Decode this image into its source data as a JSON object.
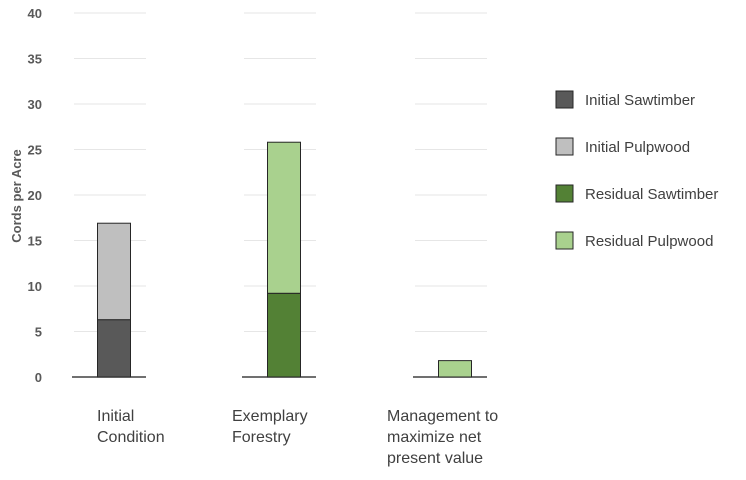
{
  "chart_data": {
    "type": "bar",
    "stacked": true,
    "title": "",
    "xlabel": "",
    "ylabel": "Cords per Acre",
    "ylim": [
      0,
      40
    ],
    "yticks": [
      0,
      5,
      10,
      15,
      20,
      25,
      30,
      35,
      40
    ],
    "grid": false,
    "legend_position": "right",
    "categories": [
      [
        "Initial",
        "Condition"
      ],
      [
        "Exemplary",
        "Forestry"
      ],
      [
        "Management to",
        "maximize net",
        "present value"
      ]
    ],
    "series": [
      {
        "name": "Initial Sawtimber",
        "color": "#595959",
        "values": [
          6.3,
          0,
          0
        ]
      },
      {
        "name": "Initial Pulpwood",
        "color": "#bfbfbf",
        "values": [
          10.6,
          0,
          0
        ]
      },
      {
        "name": "Residual Sawtimber",
        "color": "#538135",
        "values": [
          0,
          9.2,
          0
        ]
      },
      {
        "name": "Residual Pulpwood",
        "color": "#a9d18e",
        "values": [
          0,
          16.6,
          1.8
        ]
      }
    ]
  }
}
